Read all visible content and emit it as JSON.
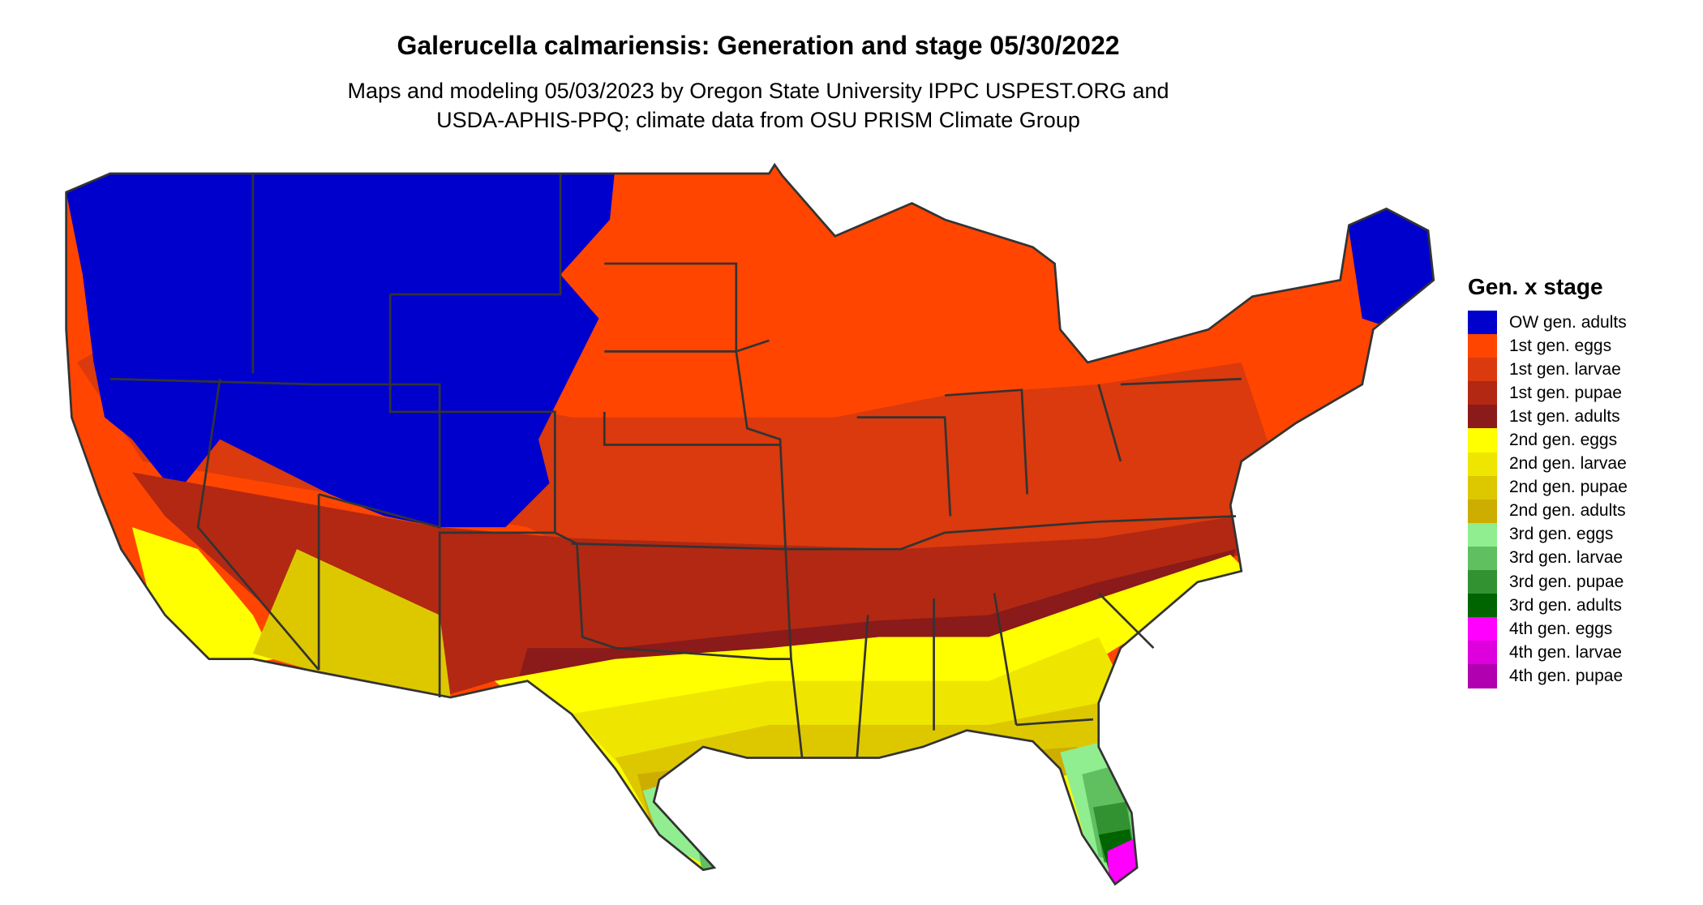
{
  "title": "Galerucella calmariensis: Generation and stage 05/30/2022",
  "subtitle_line1": "Maps and modeling 05/03/2023 by Oregon State University IPPC USPEST.ORG and",
  "subtitle_line2": "USDA-APHIS-PPQ; climate data from OSU PRISM Climate Group",
  "chart_data": {
    "type": "heatmap",
    "title": "Galerucella calmariensis: Generation and stage 05/30/2022",
    "region": "Contiguous United States",
    "legend": {
      "title": "Gen. x stage",
      "placement": "right",
      "entries": [
        {
          "label": "OW gen. adults",
          "color": "#0000CD"
        },
        {
          "label": "1st gen. eggs",
          "color": "#FF4500"
        },
        {
          "label": "1st gen. larvae",
          "color": "#DA3A0D"
        },
        {
          "label": "1st gen. pupae",
          "color": "#B22812"
        },
        {
          "label": "1st gen. adults",
          "color": "#8B1A1A"
        },
        {
          "label": "2nd gen. eggs",
          "color": "#FFFF00"
        },
        {
          "label": "2nd gen. larvae",
          "color": "#EEE600"
        },
        {
          "label": "2nd gen. pupae",
          "color": "#DDC800"
        },
        {
          "label": "2nd gen. adults",
          "color": "#CDAD00"
        },
        {
          "label": "3rd gen. eggs",
          "color": "#90EE90"
        },
        {
          "label": "3rd gen. larvae",
          "color": "#60C060"
        },
        {
          "label": "3rd gen. pupae",
          "color": "#329232"
        },
        {
          "label": "3rd gen. adults",
          "color": "#006400"
        },
        {
          "label": "4th gen. eggs",
          "color": "#FF00FF"
        },
        {
          "label": "4th gen. larvae",
          "color": "#DD00DD"
        },
        {
          "label": "4th gen. pupae",
          "color": "#B000B0"
        }
      ]
    }
  }
}
